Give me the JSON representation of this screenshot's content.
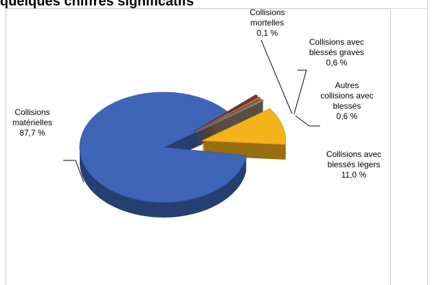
{
  "header": {
    "title_partial": "quelques chiffres significatifs"
  },
  "chart_data": {
    "type": "pie",
    "title": "",
    "slices": [
      {
        "lines": [
          "Collisions",
          "matérielles"
        ],
        "value_label": "87,7 %",
        "value": 87.7,
        "color": "#3e65b7"
      },
      {
        "lines": [
          "Collisions",
          "mortelles"
        ],
        "value_label": "0,1 %",
        "value": 0.1,
        "color": "#7a3b2e"
      },
      {
        "lines": [
          "Collisions avec",
          "blessés graves"
        ],
        "value_label": "0,6 %",
        "value": 0.6,
        "color": "#b06a3e"
      },
      {
        "lines": [
          "Autres",
          "collisions avec",
          "blessés"
        ],
        "value_label": "0,6 %",
        "value": 0.6,
        "color": "#8c7f70"
      },
      {
        "lines": [
          "Collisions avec",
          "blessés légers"
        ],
        "value_label": "11,0 %",
        "value": 11.0,
        "color": "#f3b31b"
      }
    ]
  }
}
